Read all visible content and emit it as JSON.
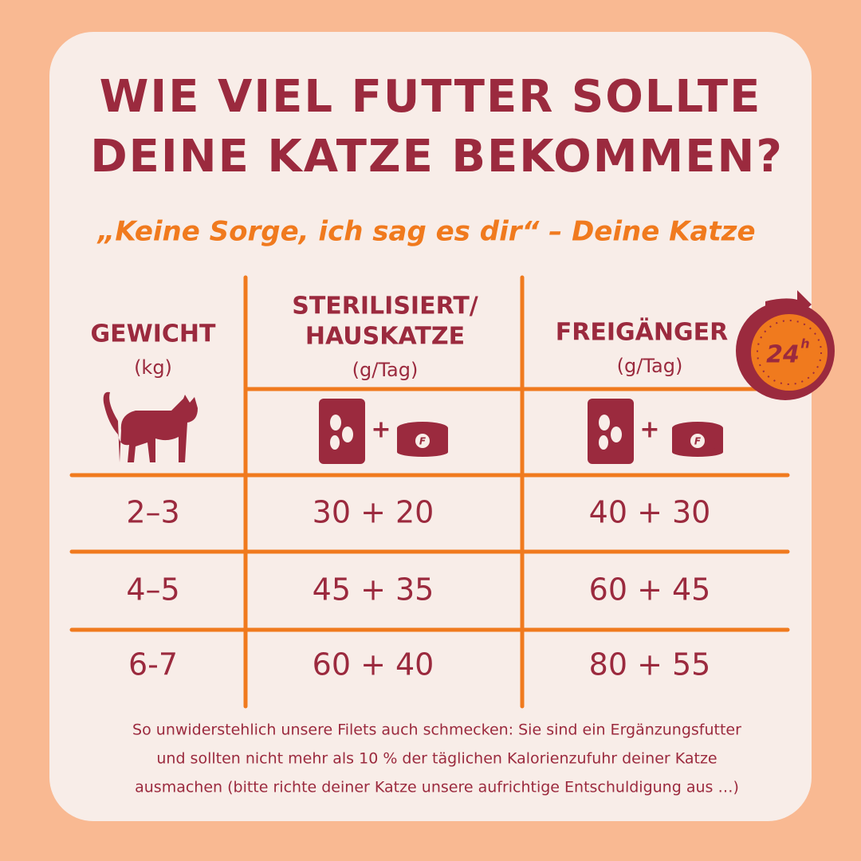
{
  "title": [
    "WIE VIEL FUTTER SOLLTE",
    "DEINE KATZE BEKOMMEN?"
  ],
  "subtitle": "„Keine Sorge, ich sag es dir“ – Deine Katze",
  "badge": {
    "number": "24",
    "unit": "h"
  },
  "table": {
    "headers": [
      {
        "lines": [
          "GEWICHT"
        ],
        "unit": "(kg)"
      },
      {
        "lines": [
          "STERILISIERT/",
          "HAUSKATZE"
        ],
        "unit": "(g/Tag)"
      },
      {
        "lines": [
          "FREIGÄNGER"
        ],
        "unit": "(g/Tag)"
      }
    ],
    "icon_plus": "+",
    "can_label": "F",
    "rows": [
      [
        "2–3",
        "30 + 20",
        "40 + 30"
      ],
      [
        "4–5",
        "45 + 35",
        "60 + 45"
      ],
      [
        "6-7",
        "60 + 40",
        "80 + 55"
      ]
    ]
  },
  "footnote": [
    "So unwiderstehlich unsere Filets auch schmecken: Sie sind ein Ergänzungsfutter",
    "und sollten nicht mehr als 10 % der täglichen Kalorienzufuhr deiner Katze",
    "ausmachen (bitte richte deiner Katze unsere aufrichtige Entschuldigung aus …)"
  ]
}
